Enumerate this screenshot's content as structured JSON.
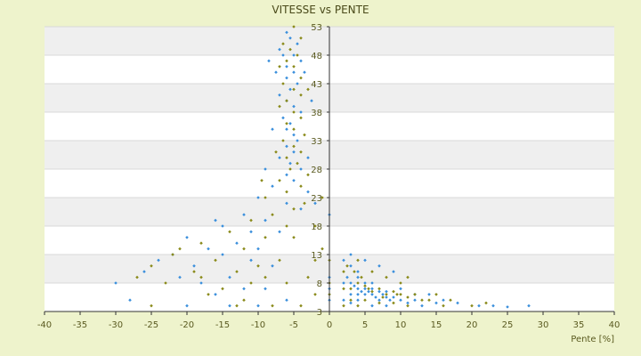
{
  "chart_data": {
    "type": "scatter",
    "title": "VITESSE vs PENTE",
    "xlabel": "Pente [%]",
    "ylabel": "",
    "xlim": [
      -40,
      40
    ],
    "ylim": [
      3,
      53
    ],
    "x_ticks": [
      "-40",
      "-35",
      "-30",
      "-25",
      "-20",
      "-15",
      "-10",
      "-5",
      "0",
      "5",
      "10",
      "15",
      "20",
      "25",
      "30",
      "35",
      "40"
    ],
    "y_ticks": [
      "3",
      "8",
      "13",
      "18",
      "23",
      "28",
      "33",
      "38",
      "43",
      "48",
      "53"
    ],
    "grid": true,
    "legend": "none",
    "colors": {
      "background": "#eef3cc",
      "plot_band_light": "#ffffff",
      "plot_band_dark": "#efefef",
      "series_a": "#3a8fdc",
      "series_b": "#8a8a1a",
      "axis": "#333333"
    },
    "series": [
      {
        "marker": "diamond",
        "color": "#3a8fdc",
        "points": [
          [
            -6,
            52
          ],
          [
            -5.5,
            51
          ],
          [
            -4.5,
            50
          ],
          [
            -7,
            49
          ],
          [
            -6.5,
            48
          ],
          [
            -5,
            48
          ],
          [
            -4,
            47
          ],
          [
            -6,
            46
          ],
          [
            -5,
            45
          ],
          [
            -7.5,
            45
          ],
          [
            -6,
            44
          ],
          [
            -4.5,
            43
          ],
          [
            -5.5,
            42
          ],
          [
            -7,
            41
          ],
          [
            -6,
            40
          ],
          [
            -5,
            39
          ],
          [
            -4,
            38
          ],
          [
            -6.5,
            37
          ],
          [
            -5.5,
            36
          ],
          [
            -6,
            35
          ],
          [
            -5,
            34
          ],
          [
            -4.5,
            33
          ],
          [
            -6,
            32
          ],
          [
            -5,
            31
          ],
          [
            -7,
            30
          ],
          [
            -5.5,
            29
          ],
          [
            -4,
            28
          ],
          [
            -6,
            27
          ],
          [
            -5,
            26
          ],
          [
            -8,
            25
          ],
          [
            -3,
            24
          ],
          [
            -10,
            23
          ],
          [
            -6,
            22
          ],
          [
            -4,
            21
          ],
          [
            -12,
            20
          ],
          [
            -9,
            19
          ],
          [
            -15,
            18
          ],
          [
            -7,
            17
          ],
          [
            -20,
            16
          ],
          [
            -13,
            15
          ],
          [
            -17,
            14
          ],
          [
            -10,
            14
          ],
          [
            -24,
            12
          ],
          [
            -15,
            13
          ],
          [
            -11,
            12
          ],
          [
            -19,
            11
          ],
          [
            -8,
            11
          ],
          [
            -26,
            10
          ],
          [
            -14,
            9
          ],
          [
            -21,
            9
          ],
          [
            -30,
            8
          ],
          [
            -18,
            8
          ],
          [
            -12,
            7
          ],
          [
            -28,
            5
          ],
          [
            -16,
            6
          ],
          [
            -9,
            7
          ],
          [
            -20,
            4
          ],
          [
            -14,
            4
          ],
          [
            -10,
            4
          ],
          [
            -6,
            5
          ],
          [
            -8.5,
            47
          ],
          [
            -3.5,
            45
          ],
          [
            -2.5,
            40
          ],
          [
            -8,
            35
          ],
          [
            -3,
            30
          ],
          [
            -9,
            28
          ],
          [
            -2,
            22
          ],
          [
            -11,
            17
          ],
          [
            -16,
            19
          ],
          [
            -22,
            13
          ],
          [
            0,
            5
          ],
          [
            0,
            7
          ],
          [
            0,
            9
          ],
          [
            0,
            20
          ],
          [
            2,
            12
          ],
          [
            3,
            11
          ],
          [
            4,
            10
          ],
          [
            2.5,
            9
          ],
          [
            3,
            8
          ],
          [
            3.5,
            7.5
          ],
          [
            4,
            7
          ],
          [
            4.5,
            6.5
          ],
          [
            5,
            6
          ],
          [
            5.5,
            6.5
          ],
          [
            6,
            6
          ],
          [
            6.5,
            5.5
          ],
          [
            7,
            5
          ],
          [
            7.5,
            6
          ],
          [
            8,
            5.5
          ],
          [
            8.5,
            5
          ],
          [
            9,
            5.5
          ],
          [
            10,
            5
          ],
          [
            11,
            4.5
          ],
          [
            12,
            5
          ],
          [
            3,
            6
          ],
          [
            4,
            6
          ],
          [
            5,
            7
          ],
          [
            6,
            7
          ],
          [
            7,
            6.5
          ],
          [
            8,
            6.5
          ],
          [
            2,
            8
          ],
          [
            4,
            9
          ],
          [
            5,
            8
          ],
          [
            6,
            8
          ],
          [
            3,
            13
          ],
          [
            5,
            12
          ],
          [
            7,
            11
          ],
          [
            9,
            10
          ],
          [
            10,
            7
          ],
          [
            12,
            6
          ],
          [
            14,
            6
          ],
          [
            16,
            5
          ],
          [
            18,
            4.5
          ],
          [
            21,
            4
          ],
          [
            23,
            4
          ],
          [
            25,
            3.8
          ],
          [
            28,
            4
          ],
          [
            2,
            5
          ],
          [
            3,
            4.5
          ],
          [
            4,
            5
          ],
          [
            6,
            4
          ],
          [
            8,
            4
          ],
          [
            13,
            4
          ],
          [
            15,
            4.5
          ]
        ]
      },
      {
        "marker": "diamond",
        "color": "#8a8a1a",
        "points": [
          [
            -5,
            53
          ],
          [
            -4,
            51
          ],
          [
            -6.5,
            50
          ],
          [
            -5.5,
            49
          ],
          [
            -4.5,
            48
          ],
          [
            -6,
            47
          ],
          [
            -7,
            46
          ],
          [
            -5,
            46
          ],
          [
            -4,
            44
          ],
          [
            -6.5,
            43
          ],
          [
            -5,
            42
          ],
          [
            -4,
            41
          ],
          [
            -6,
            40
          ],
          [
            -7,
            39
          ],
          [
            -5,
            38
          ],
          [
            -4,
            37
          ],
          [
            -6,
            36
          ],
          [
            -5,
            35
          ],
          [
            -3.5,
            34
          ],
          [
            -6.5,
            33
          ],
          [
            -5,
            32
          ],
          [
            -4,
            31
          ],
          [
            -6,
            30
          ],
          [
            -4.5,
            29
          ],
          [
            -5.5,
            28
          ],
          [
            -3,
            27
          ],
          [
            -7,
            26
          ],
          [
            -4,
            25
          ],
          [
            -6,
            24
          ],
          [
            -9,
            23
          ],
          [
            -3.5,
            22
          ],
          [
            -5,
            21
          ],
          [
            -8,
            20
          ],
          [
            -11,
            19
          ],
          [
            -6,
            18
          ],
          [
            -14,
            17
          ],
          [
            -9,
            16
          ],
          [
            -18,
            15
          ],
          [
            -12,
            14
          ],
          [
            -22,
            13
          ],
          [
            -16,
            12
          ],
          [
            -7,
            12
          ],
          [
            -25,
            11
          ],
          [
            -13,
            10
          ],
          [
            -19,
            10
          ],
          [
            -9,
            9
          ],
          [
            -27,
            9
          ],
          [
            -23,
            8
          ],
          [
            -15,
            7
          ],
          [
            -11,
            8
          ],
          [
            -17,
            6
          ],
          [
            -25,
            4
          ],
          [
            -13,
            4
          ],
          [
            -8,
            4
          ],
          [
            -4,
            4
          ],
          [
            -2,
            6
          ],
          [
            -3,
            9
          ],
          [
            -1,
            14
          ],
          [
            -2,
            18
          ],
          [
            -1,
            23
          ],
          [
            -9.5,
            26
          ],
          [
            -3,
            42
          ],
          [
            -7.5,
            31
          ],
          [
            -2,
            12
          ],
          [
            -5,
            16
          ],
          [
            -21,
            14
          ],
          [
            -18,
            9
          ],
          [
            -12,
            5
          ],
          [
            -6,
            8
          ],
          [
            -10,
            11
          ],
          [
            0,
            6
          ],
          [
            0,
            8
          ],
          [
            0,
            12
          ],
          [
            2.5,
            11
          ],
          [
            3.5,
            10
          ],
          [
            4.5,
            9
          ],
          [
            2,
            7
          ],
          [
            3,
            7
          ],
          [
            4,
            8
          ],
          [
            5,
            7.5
          ],
          [
            5.5,
            7
          ],
          [
            6,
            6.5
          ],
          [
            7,
            7
          ],
          [
            7.5,
            5.5
          ],
          [
            8,
            6
          ],
          [
            9,
            6.5
          ],
          [
            9.5,
            6
          ],
          [
            10,
            6
          ],
          [
            11,
            5.5
          ],
          [
            12,
            6
          ],
          [
            13,
            5
          ],
          [
            14,
            5
          ],
          [
            15,
            6
          ],
          [
            16,
            4
          ],
          [
            17,
            5
          ],
          [
            3,
            5
          ],
          [
            5,
            5
          ],
          [
            7,
            4.5
          ],
          [
            9,
            4.5
          ],
          [
            11,
            4
          ],
          [
            2,
            10
          ],
          [
            4,
            12
          ],
          [
            6,
            10
          ],
          [
            8,
            9
          ],
          [
            10,
            8
          ],
          [
            11,
            9
          ],
          [
            20,
            4
          ],
          [
            22,
            4.5
          ],
          [
            2,
            4
          ],
          [
            4,
            4
          ]
        ]
      }
    ]
  }
}
